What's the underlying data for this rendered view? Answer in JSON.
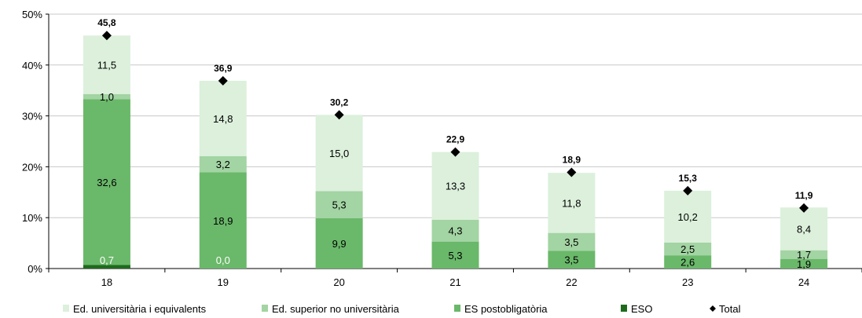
{
  "chart_data": {
    "type": "bar",
    "stacked": true,
    "categories": [
      "18",
      "19",
      "20",
      "21",
      "22",
      "23",
      "24"
    ],
    "ylim": [
      0,
      50
    ],
    "yticks": [
      "0%",
      "10%",
      "20%",
      "30%",
      "40%",
      "50%"
    ],
    "series": [
      {
        "name": "ESO",
        "color": "#1e6b1e",
        "values": [
          0.7,
          0.0,
          0,
          0,
          0,
          0,
          0
        ],
        "labels": [
          "0,7",
          "0,0",
          "",
          "",
          "",
          "",
          ""
        ],
        "label_color": "#ffffff"
      },
      {
        "name": "ES postobligatòria",
        "color": "#6ab86a",
        "values": [
          32.6,
          18.9,
          9.9,
          5.3,
          3.5,
          2.6,
          1.9
        ],
        "labels": [
          "32,6",
          "18,9",
          "9,9",
          "5,3",
          "3,5",
          "2,6",
          "1,9"
        ],
        "label_color": "#000000"
      },
      {
        "name": "Ed. superior no universitària",
        "color": "#a3d4a3",
        "values": [
          1.0,
          3.2,
          5.3,
          4.3,
          3.5,
          2.5,
          1.7
        ],
        "labels": [
          "1,0",
          "3,2",
          "5,3",
          "4,3",
          "3,5",
          "2,5",
          "1,7"
        ],
        "label_color": "#000000"
      },
      {
        "name": "Ed. universitària i equivalents",
        "color": "#dcf0dc",
        "values": [
          11.5,
          14.8,
          15.0,
          13.3,
          11.8,
          10.2,
          8.4
        ],
        "labels": [
          "11,5",
          "14,8",
          "15,0",
          "13,3",
          "11,8",
          "10,2",
          "8,4"
        ],
        "label_color": "#000000"
      }
    ],
    "total": {
      "name": "Total",
      "values": [
        45.8,
        36.9,
        30.2,
        22.9,
        18.9,
        15.3,
        11.9
      ],
      "labels": [
        "45,8",
        "36,9",
        "30,2",
        "22,9",
        "18,9",
        "15,3",
        "11,9"
      ]
    },
    "legend": [
      {
        "name": "Ed. universitària i equivalents",
        "color": "#dcf0dc",
        "marker": "square"
      },
      {
        "name": "Ed. superior no universitària",
        "color": "#a3d4a3",
        "marker": "square"
      },
      {
        "name": "ES postobligatòria",
        "color": "#6ab86a",
        "marker": "square"
      },
      {
        "name": "ESO",
        "color": "#1e6b1e",
        "marker": "square"
      },
      {
        "name": "Total",
        "color": "#000000",
        "marker": "diamond"
      }
    ],
    "legend_position": "bottom"
  }
}
